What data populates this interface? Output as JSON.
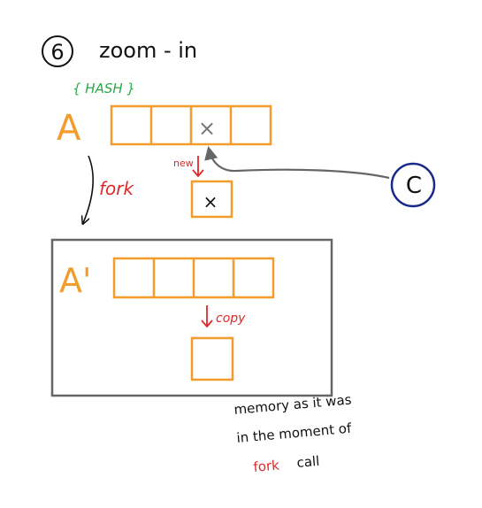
{
  "title": {
    "number": "6",
    "text": "zoom - in"
  },
  "hash_label": "{ HASH }",
  "labels": {
    "a": "A",
    "a_prime": "A'",
    "x_mark": "×",
    "x_mark_new": "×",
    "new": "new",
    "fork": "fork",
    "copy": "copy",
    "c": "C"
  },
  "note": {
    "line1": "memory as it was",
    "line2": "in the moment of",
    "line3_red": "fork",
    "line3_rest": "call"
  },
  "colors": {
    "orange": "#f39c2b",
    "green": "#2ea84a",
    "red": "#e02828",
    "navy": "#1a2a8c",
    "gray": "#666666",
    "ink": "#111111"
  }
}
